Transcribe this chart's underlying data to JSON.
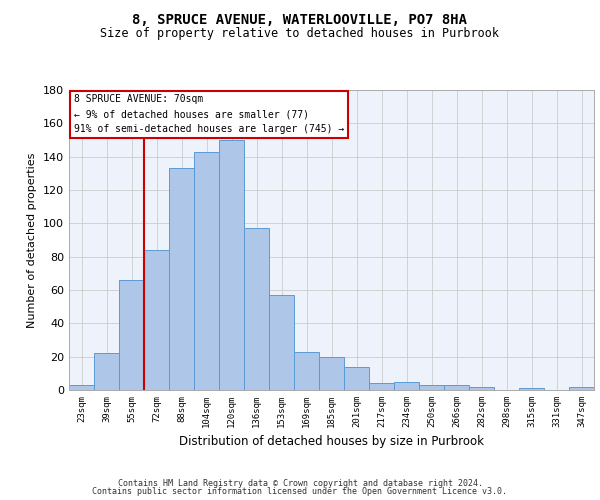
{
  "title1": "8, SPRUCE AVENUE, WATERLOOVILLE, PO7 8HA",
  "title2": "Size of property relative to detached houses in Purbrook",
  "xlabel": "Distribution of detached houses by size in Purbrook",
  "ylabel": "Number of detached properties",
  "bar_labels": [
    "23sqm",
    "39sqm",
    "55sqm",
    "72sqm",
    "88sqm",
    "104sqm",
    "120sqm",
    "136sqm",
    "153sqm",
    "169sqm",
    "185sqm",
    "201sqm",
    "217sqm",
    "234sqm",
    "250sqm",
    "266sqm",
    "282sqm",
    "298sqm",
    "315sqm",
    "331sqm",
    "347sqm"
  ],
  "bar_heights": [
    3,
    22,
    66,
    84,
    133,
    143,
    150,
    97,
    57,
    23,
    20,
    14,
    4,
    5,
    3,
    3,
    2,
    0,
    1,
    0,
    2
  ],
  "bar_color": "#AEC6E8",
  "bar_edge_color": "#5A9BD4",
  "bg_color": "#EEF2FB",
  "grid_color": "#CCCCCC",
  "red_line_x": 2.5,
  "annotation_text": "8 SPRUCE AVENUE: 70sqm\n← 9% of detached houses are smaller (77)\n91% of semi-detached houses are larger (745) →",
  "footer1": "Contains HM Land Registry data © Crown copyright and database right 2024.",
  "footer2": "Contains public sector information licensed under the Open Government Licence v3.0.",
  "ylim": [
    0,
    180
  ],
  "yticks": [
    0,
    20,
    40,
    60,
    80,
    100,
    120,
    140,
    160,
    180
  ]
}
